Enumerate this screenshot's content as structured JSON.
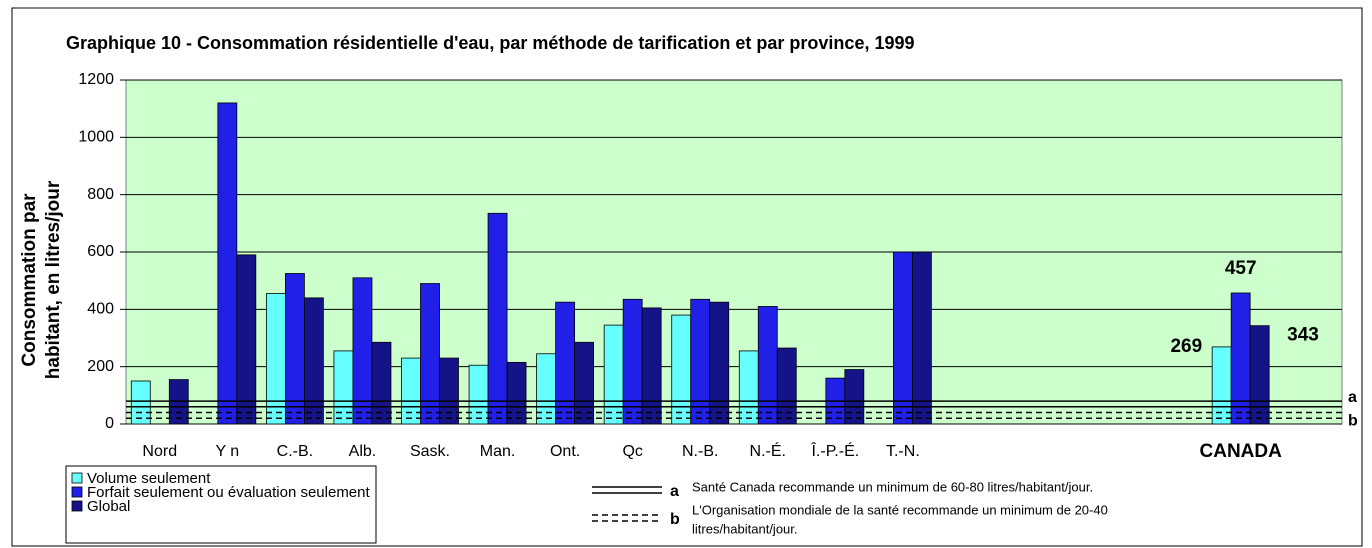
{
  "chart_data": {
    "type": "bar",
    "title": "Graphique 10 - Consommation résidentielle d'eau, par méthode de tarification et par province, 1999",
    "y_label": [
      "Consommation par",
      "habitant, en litres/jour"
    ],
    "categories": [
      "Nord",
      "Y n",
      "C.-B.",
      "Alb.",
      "Sask.",
      "Man.",
      "Ont.",
      "Qc",
      "N.-B.",
      "N.-É.",
      "Î.-P.-É.",
      "T.-N.",
      null,
      null,
      null,
      null,
      "CANADA",
      null
    ],
    "series": [
      {
        "name": "Volume seulement",
        "color": "#66ffff",
        "values": [
          150,
          null,
          455,
          255,
          230,
          205,
          245,
          345,
          380,
          255,
          null,
          null,
          null,
          null,
          null,
          null,
          269,
          null
        ],
        "value_labels": [
          null,
          null,
          null,
          null,
          null,
          null,
          null,
          null,
          null,
          null,
          null,
          null,
          null,
          null,
          null,
          null,
          "269",
          null
        ]
      },
      {
        "name": "Forfait seulement ou évaluation seulement",
        "color": "#2020e8",
        "values": [
          null,
          1120,
          525,
          510,
          490,
          735,
          425,
          435,
          435,
          410,
          160,
          600,
          null,
          null,
          null,
          null,
          457,
          null
        ],
        "value_labels": [
          null,
          null,
          null,
          null,
          null,
          null,
          null,
          null,
          null,
          null,
          null,
          null,
          null,
          null,
          null,
          null,
          "457",
          null
        ]
      },
      {
        "name": "Global",
        "color": "#141488",
        "values": [
          155,
          590,
          440,
          285,
          230,
          215,
          285,
          405,
          425,
          265,
          190,
          600,
          null,
          null,
          null,
          null,
          343,
          null
        ],
        "value_labels": [
          null,
          null,
          null,
          null,
          null,
          null,
          null,
          null,
          null,
          null,
          null,
          null,
          null,
          null,
          null,
          null,
          "343",
          null
        ]
      }
    ],
    "reference_lines": [
      {
        "label": "a",
        "values": [
          60,
          80
        ],
        "style": "solid",
        "note": "Santé Canada recommande un minimum de 60-80 litres/habitant/jour."
      },
      {
        "label": "b",
        "values": [
          20,
          40
        ],
        "style": "dashed",
        "note": [
          "L'Organisation mondiale de la santé recommande un minimum de 20-40",
          "litres/habitant/jour."
        ]
      }
    ],
    "ylim": [
      0,
      1200
    ],
    "yticks": [
      0,
      200,
      400,
      600,
      800,
      1000,
      1200
    ],
    "grid": true,
    "plot_background": "#ccffcc"
  }
}
